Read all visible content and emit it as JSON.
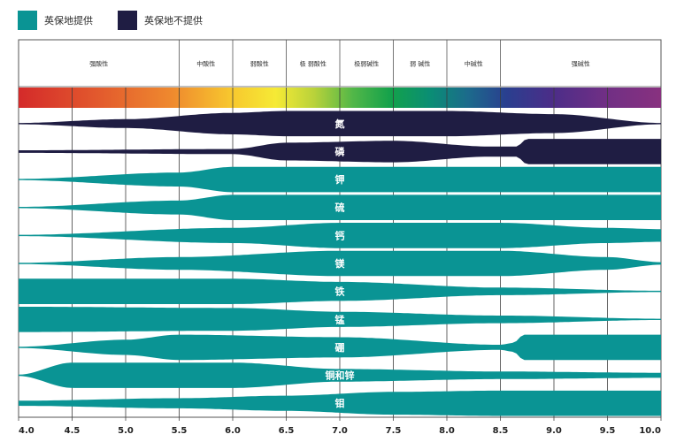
{
  "legend": {
    "provided": {
      "label": "英保地提供",
      "color": "#0a9494"
    },
    "not_provided": {
      "label": "英保地不提供",
      "color": "#1f1d43"
    }
  },
  "chart_data": {
    "type": "bar",
    "xlim": [
      4.0,
      10.0
    ],
    "x_ticks": [
      "4.0",
      "4.5",
      "5.0",
      "5.5",
      "6.0",
      "6.5",
      "7.0",
      "7.5",
      "8.0",
      "8.5",
      "9.0",
      "9.5",
      "10.0"
    ],
    "ph_bands": [
      {
        "label": "强酸性",
        "from": 4.0,
        "to": 5.5
      },
      {
        "label": "中酸性",
        "from": 5.5,
        "to": 6.0
      },
      {
        "label": "弱酸性",
        "from": 6.0,
        "to": 6.5
      },
      {
        "label": "极 弱酸性",
        "from": 6.5,
        "to": 7.0
      },
      {
        "label": "极弱碱性",
        "from": 7.0,
        "to": 7.5
      },
      {
        "label": "弱 碱性",
        "from": 7.5,
        "to": 8.0
      },
      {
        "label": "中碱性",
        "from": 8.0,
        "to": 8.5
      },
      {
        "label": "强碱性",
        "from": 8.5,
        "to": 10.0
      }
    ],
    "series": [
      {
        "name": "氮",
        "provided": false,
        "thickness": [
          [
            4.0,
            0.05
          ],
          [
            5.0,
            0.35
          ],
          [
            6.0,
            0.85
          ],
          [
            6.5,
            1.0
          ],
          [
            8.0,
            1.0
          ],
          [
            9.0,
            0.75
          ],
          [
            10.0,
            0.05
          ]
        ]
      },
      {
        "name": "磷",
        "provided": false,
        "thickness": [
          [
            4.0,
            0.1
          ],
          [
            6.0,
            0.2
          ],
          [
            6.5,
            0.7
          ],
          [
            7.5,
            0.85
          ],
          [
            8.4,
            0.4
          ],
          [
            8.65,
            0.4
          ],
          [
            8.75,
            1.0
          ],
          [
            10.0,
            1.0
          ]
        ]
      },
      {
        "name": "钾",
        "provided": true,
        "thickness": [
          [
            4.0,
            0.05
          ],
          [
            5.5,
            0.55
          ],
          [
            6.0,
            1.0
          ],
          [
            10.0,
            1.0
          ]
        ]
      },
      {
        "name": "硫",
        "provided": true,
        "thickness": [
          [
            4.0,
            0.05
          ],
          [
            5.5,
            0.55
          ],
          [
            6.0,
            1.0
          ],
          [
            10.0,
            1.0
          ]
        ]
      },
      {
        "name": "钙",
        "provided": true,
        "thickness": [
          [
            4.0,
            0.05
          ],
          [
            6.0,
            0.6
          ],
          [
            7.0,
            1.0
          ],
          [
            8.5,
            1.0
          ],
          [
            9.5,
            0.6
          ],
          [
            10.0,
            0.5
          ]
        ]
      },
      {
        "name": "镁",
        "provided": true,
        "thickness": [
          [
            4.0,
            0.05
          ],
          [
            5.5,
            0.5
          ],
          [
            7.0,
            1.0
          ],
          [
            8.5,
            1.0
          ],
          [
            9.5,
            0.5
          ],
          [
            10.0,
            0.1
          ]
        ]
      },
      {
        "name": "铁",
        "provided": true,
        "thickness": [
          [
            4.0,
            1.0
          ],
          [
            6.0,
            1.0
          ],
          [
            7.0,
            0.75
          ],
          [
            8.5,
            0.3
          ],
          [
            10.0,
            0.05
          ]
        ]
      },
      {
        "name": "锰",
        "provided": true,
        "thickness": [
          [
            4.0,
            1.0
          ],
          [
            6.0,
            0.9
          ],
          [
            7.0,
            0.6
          ],
          [
            8.5,
            0.3
          ],
          [
            10.0,
            0.05
          ]
        ]
      },
      {
        "name": "硼",
        "provided": true,
        "thickness": [
          [
            4.0,
            0.05
          ],
          [
            5.0,
            0.6
          ],
          [
            5.5,
            1.0
          ],
          [
            7.0,
            0.8
          ],
          [
            8.5,
            0.2
          ],
          [
            8.62,
            0.35
          ],
          [
            8.72,
            1.0
          ],
          [
            10.0,
            1.0
          ]
        ]
      },
      {
        "name": "铜和锌",
        "provided": true,
        "thickness": [
          [
            4.0,
            0.05
          ],
          [
            4.5,
            1.0
          ],
          [
            6.0,
            1.0
          ],
          [
            7.0,
            0.5
          ],
          [
            8.5,
            0.3
          ],
          [
            10.0,
            0.2
          ]
        ]
      },
      {
        "name": "钼",
        "provided": true,
        "thickness": [
          [
            4.0,
            0.2
          ],
          [
            5.5,
            0.4
          ],
          [
            6.5,
            0.6
          ],
          [
            7.5,
            0.9
          ],
          [
            8.5,
            1.0
          ],
          [
            10.0,
            1.0
          ]
        ]
      }
    ]
  }
}
